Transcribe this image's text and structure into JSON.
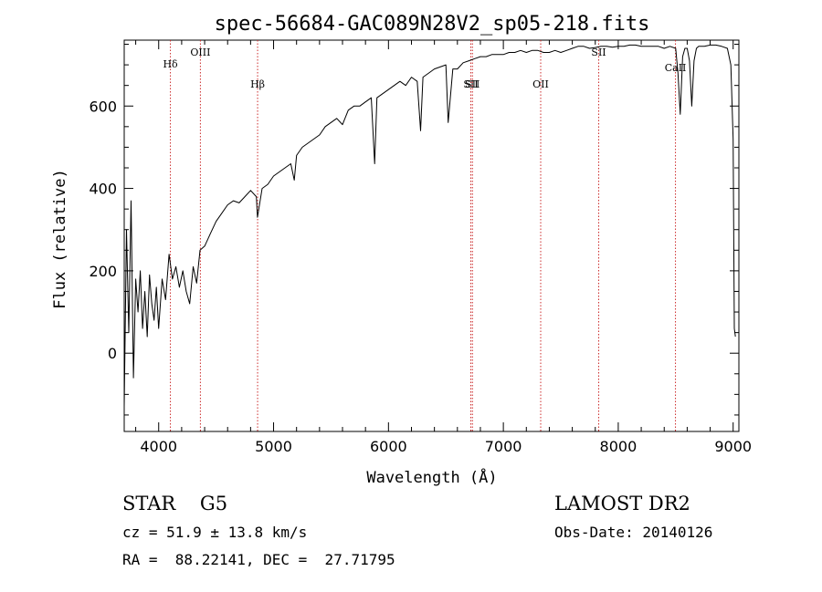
{
  "chart_data": {
    "type": "line",
    "title": "spec-56684-GAC089N28V2_sp05-218.fits",
    "xlabel": "Wavelength (Å)",
    "ylabel": "Flux (relative)",
    "xlim": [
      3700,
      9050
    ],
    "ylim": [
      -190,
      760
    ],
    "x_ticks": [
      4000,
      5000,
      6000,
      7000,
      8000,
      9000
    ],
    "y_ticks": [
      0,
      200,
      400,
      600
    ],
    "grid": false,
    "series": [
      {
        "x": [
          3700,
          3720,
          3740,
          3760,
          3780,
          3800,
          3820,
          3840,
          3860,
          3880,
          3900,
          3920,
          3940,
          3960,
          3980,
          4000,
          4030,
          4060,
          4090,
          4120,
          4150,
          4180,
          4210,
          4240,
          4270,
          4300,
          4330,
          4360,
          4400,
          4450,
          4500,
          4550,
          4600,
          4650,
          4700,
          4750,
          4800,
          4850,
          4860,
          4900,
          4950,
          5000,
          5050,
          5100,
          5150,
          5180,
          5200,
          5250,
          5300,
          5350,
          5400,
          5450,
          5500,
          5550,
          5600,
          5650,
          5700,
          5750,
          5800,
          5850,
          5880,
          5900,
          5950,
          6000,
          6050,
          6100,
          6150,
          6200,
          6250,
          6280,
          6300,
          6350,
          6400,
          6450,
          6500,
          6520,
          6560,
          6600,
          6650,
          6700,
          6750,
          6800,
          6850,
          6900,
          6950,
          7000,
          7050,
          7100,
          7150,
          7200,
          7250,
          7300,
          7350,
          7400,
          7450,
          7500,
          7550,
          7600,
          7650,
          7700,
          7750,
          7800,
          7850,
          7900,
          7950,
          8000,
          8050,
          8100,
          8150,
          8200,
          8250,
          8300,
          8350,
          8400,
          8450,
          8500,
          8520,
          8540,
          8560,
          8580,
          8600,
          8620,
          8640,
          8660,
          8680,
          8700,
          8750,
          8800,
          8850,
          8900,
          8950,
          8980,
          9000,
          9010,
          9020
        ],
        "y": [
          -130,
          300,
          50,
          370,
          -60,
          180,
          100,
          200,
          60,
          150,
          40,
          190,
          120,
          80,
          160,
          60,
          180,
          130,
          240,
          180,
          210,
          160,
          200,
          150,
          120,
          210,
          170,
          250,
          260,
          290,
          320,
          340,
          360,
          370,
          365,
          380,
          395,
          380,
          330,
          400,
          410,
          430,
          440,
          450,
          460,
          420,
          480,
          500,
          510,
          520,
          530,
          550,
          560,
          570,
          555,
          590,
          600,
          600,
          610,
          620,
          460,
          620,
          630,
          640,
          650,
          660,
          650,
          670,
          660,
          540,
          670,
          680,
          690,
          695,
          700,
          560,
          690,
          690,
          705,
          710,
          715,
          720,
          720,
          725,
          725,
          725,
          730,
          730,
          735,
          730,
          735,
          735,
          730,
          730,
          735,
          730,
          735,
          740,
          745,
          745,
          740,
          742,
          745,
          745,
          743,
          745,
          745,
          748,
          748,
          745,
          745,
          745,
          745,
          740,
          745,
          740,
          680,
          580,
          720,
          740,
          740,
          710,
          600,
          710,
          740,
          745,
          745,
          748,
          748,
          745,
          740,
          700,
          520,
          60,
          40
        ]
      }
    ],
    "line_markers": [
      {
        "label": "Hδ",
        "x": 4102
      },
      {
        "label": "OIII",
        "x": 4363
      },
      {
        "label": "Hβ",
        "x": 4861
      },
      {
        "label": "SII",
        "x": 6717
      },
      {
        "label": "SII",
        "x": 6731
      },
      {
        "label": "OII",
        "x": 7325
      },
      {
        "label": "SII",
        "x": 7830
      },
      {
        "label": "CaII",
        "x": 8498
      }
    ],
    "marker_color": "#cc2b2b",
    "line_color": "#000000"
  },
  "info": {
    "classification": "STAR    G5",
    "survey": "LAMOST DR2",
    "redshift": "cz = 51.9 ± 13.8 km/s",
    "obs_date": "Obs-Date: 20140126",
    "coords": "RA =  88.22141, DEC =  27.71795"
  }
}
